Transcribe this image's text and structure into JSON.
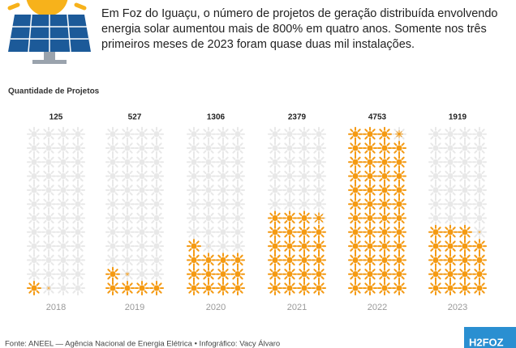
{
  "header": {
    "text_lines": [
      "Em Foz do Iguaçu, o número de projetos de geração distribuída envolvendo",
      "energia solar aumentou mais de 800% em quatro anos. Somente nos três",
      "primeiros meses de 2023 foram quase duas mil instalações."
    ]
  },
  "chart_data": {
    "type": "pictogram",
    "ylabel": "Quantidade de Projetos",
    "categories": [
      "2018",
      "2019",
      "2020",
      "2021",
      "2022",
      "2023"
    ],
    "values": [
      125,
      527,
      1306,
      2379,
      4753,
      1919
    ],
    "color": "#f59a12",
    "ylim": [
      0,
      4800
    ]
  },
  "footer": {
    "source": "Fonte: ANEEL — Agência Nacional de Energia Elétrica • Infográfico: Vacy Álvaro",
    "logo": "H2FOZ"
  }
}
